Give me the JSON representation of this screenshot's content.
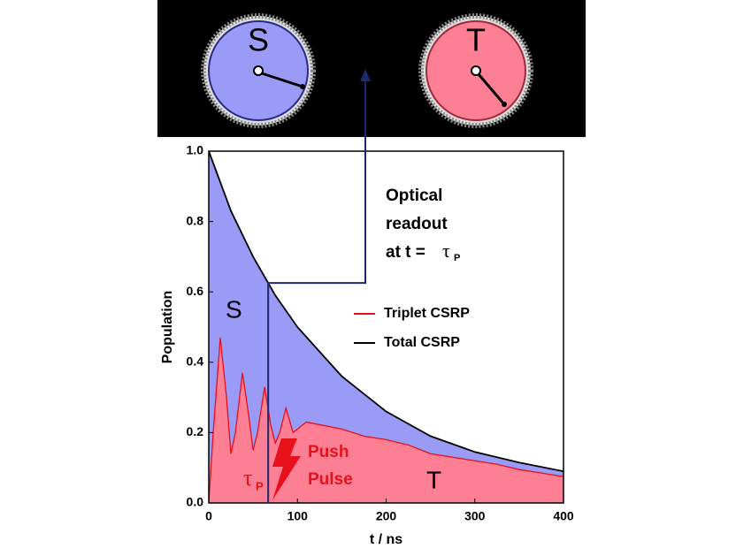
{
  "chart_data": {
    "type": "area",
    "x_label": "t / ns",
    "y_label": "Population",
    "xlim": [
      0,
      400
    ],
    "xticks": [
      0,
      100,
      200,
      300,
      400
    ],
    "ylim": [
      0,
      1
    ],
    "yticks": [
      {
        "value": 0,
        "label": "0.0"
      },
      0.2,
      0.4,
      0.6,
      0.8,
      {
        "value": 1,
        "label": "1.0"
      }
    ],
    "series": [
      {
        "name": "Total CSRP",
        "color": "#000000",
        "fill": "#9a9af7",
        "x": [
          0,
          25,
          50,
          75,
          100,
          150,
          200,
          250,
          300,
          350,
          400
        ],
        "values": [
          1.0,
          0.83,
          0.7,
          0.59,
          0.5,
          0.36,
          0.26,
          0.19,
          0.145,
          0.115,
          0.09
        ]
      },
      {
        "name": "Triplet CSRP",
        "color": "#e8101a",
        "fill": "#fc7f94",
        "x": [
          0,
          5,
          13,
          20,
          25,
          30,
          38,
          45,
          50,
          55,
          63,
          70,
          75,
          80,
          87,
          95,
          100,
          110,
          130,
          150,
          175,
          200,
          225,
          250,
          275,
          300,
          325,
          350,
          375,
          400
        ],
        "values": [
          0,
          0.2,
          0.47,
          0.3,
          0.14,
          0.2,
          0.37,
          0.25,
          0.15,
          0.2,
          0.33,
          0.22,
          0.17,
          0.2,
          0.27,
          0.2,
          0.21,
          0.23,
          0.22,
          0.21,
          0.19,
          0.18,
          0.165,
          0.14,
          0.13,
          0.12,
          0.11,
          0.095,
          0.085,
          0.075
        ]
      }
    ],
    "tau_p": 67,
    "annotations": {
      "singlet": "S",
      "triplet": "T",
      "readout": [
        "Optical",
        "readout",
        "at t = "
      ],
      "tau": "τ",
      "tau_sub": "P",
      "push": [
        "Push",
        "Pulse"
      ]
    },
    "panel": {
      "singlet": "S",
      "triplet": "T"
    }
  }
}
